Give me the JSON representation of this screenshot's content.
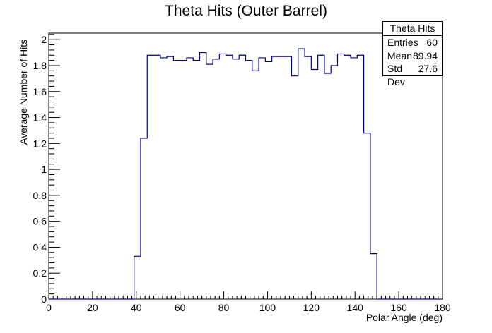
{
  "chart_data": {
    "type": "bar",
    "title": "Theta Hits (Outer Barrel)",
    "xlabel": "Polar Angle (deg)",
    "ylabel": "Average Number of Hits",
    "xlim": [
      0,
      180
    ],
    "ylim": [
      0,
      2.05
    ],
    "bin_width": 3,
    "x_ticks": [
      0,
      20,
      40,
      60,
      80,
      100,
      120,
      140,
      160,
      180
    ],
    "y_ticks": [
      0,
      0.2,
      0.4,
      0.6,
      0.8,
      1,
      1.2,
      1.4,
      1.6,
      1.8,
      2
    ],
    "x_tick_labels": [
      "0",
      "20",
      "40",
      "60",
      "80",
      "100",
      "120",
      "140",
      "160",
      "180"
    ],
    "y_tick_labels": [
      "0",
      "0.2",
      "0.4",
      "0.6",
      "0.8",
      "1",
      "1.2",
      "1.4",
      "1.6",
      "1.8",
      "2"
    ],
    "bin_edges_start": 0,
    "values": [
      0,
      0,
      0,
      0,
      0,
      0,
      0,
      0,
      0,
      0,
      0,
      0,
      0,
      0.33,
      1.24,
      1.88,
      1.88,
      1.86,
      1.87,
      1.84,
      1.84,
      1.86,
      1.84,
      1.9,
      1.81,
      1.85,
      1.89,
      1.88,
      1.85,
      1.88,
      1.84,
      1.76,
      1.86,
      1.83,
      1.87,
      1.87,
      1.87,
      1.72,
      1.93,
      1.87,
      1.77,
      1.88,
      1.74,
      1.8,
      1.89,
      1.88,
      1.86,
      1.88,
      1.28,
      0.35,
      0,
      0,
      0,
      0,
      0,
      0,
      0,
      0,
      0,
      0
    ],
    "line_color": "#00008b",
    "stats_box": {
      "name": "Theta Hits",
      "rows": [
        {
          "label": "Entries",
          "value": "60"
        },
        {
          "label": "Mean",
          "value": "89.94"
        },
        {
          "label": "Std Dev",
          "value": "27.6"
        }
      ]
    }
  }
}
